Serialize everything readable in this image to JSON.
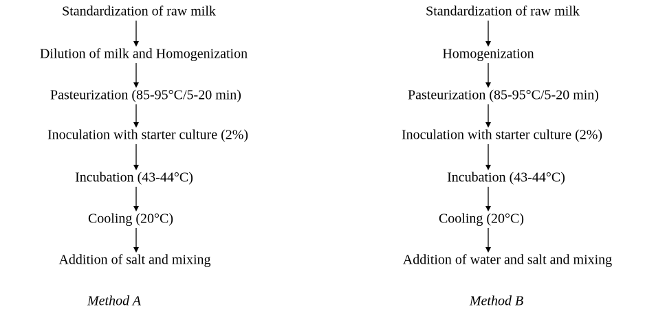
{
  "methods": [
    {
      "steps": [
        "Standardization of raw milk",
        "Dilution of milk and Homogenization",
        "Pasteurization (85-95°C/5-20 min)",
        "Inoculation with starter culture (2%)",
        "Incubation (43-44°C)",
        "Cooling (20°C)",
        "Addition of salt and mixing"
      ],
      "caption": "Method A"
    },
    {
      "steps": [
        "Standardization of raw milk",
        "Homogenization",
        "Pasteurization (85-95°C/5-20 min)",
        "Inoculation with starter culture (2%)",
        "Incubation (43-44°C)",
        "Cooling (20°C)",
        "Addition of water and salt and mixing"
      ],
      "caption": "Method B"
    }
  ]
}
